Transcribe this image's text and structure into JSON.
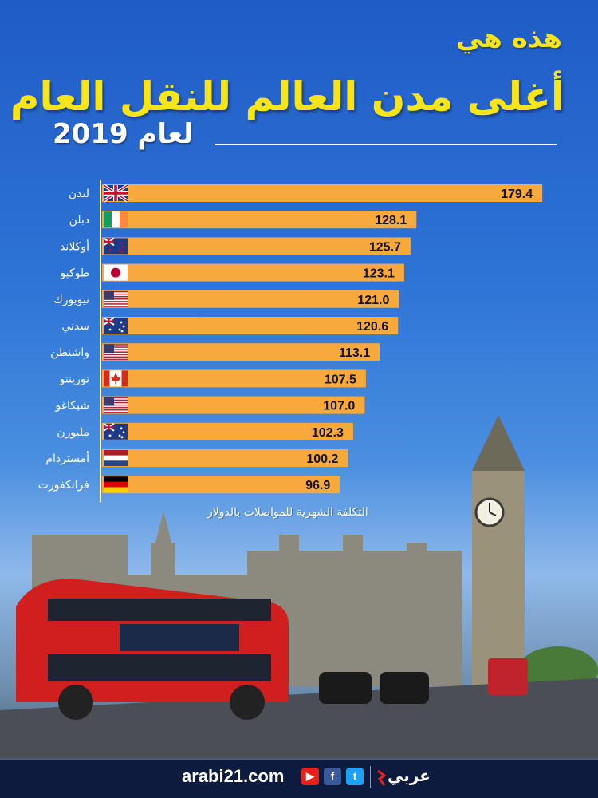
{
  "header": {
    "line1": "هذه هي",
    "line2": "أغلى مدن العالم للنقل العام",
    "line3": "لعام 2019"
  },
  "caption": "التكلفة الشهرية للمواصلات بالدولار",
  "chart_data": {
    "type": "bar",
    "orientation": "horizontal",
    "categories": [
      "لندن",
      "دبلن",
      "أوكلاند",
      "طوكيو",
      "نيويورك",
      "سدني",
      "واشنطن",
      "تورينتو",
      "شيكاغو",
      "ملبورن",
      "أمستردام",
      "فرانكفورت"
    ],
    "values": [
      179.4,
      128.1,
      125.7,
      123.1,
      121.0,
      120.6,
      113.1,
      107.5,
      107.0,
      102.3,
      100.2,
      96.9
    ],
    "value_labels": [
      "179.4",
      "128.1",
      "125.7",
      "123.1",
      "121.0",
      "120.6",
      "113.1",
      "107.5",
      "107.0",
      "102.3",
      "100.2",
      "96.9"
    ],
    "flags": [
      "uk-flag-icon",
      "ireland-flag-icon",
      "new-zealand-flag-icon",
      "japan-flag-icon",
      "usa-flag-icon",
      "australia-flag-icon",
      "usa-flag-icon",
      "canada-flag-icon",
      "usa-flag-icon",
      "australia-flag-icon",
      "netherlands-flag-icon",
      "germany-flag-icon"
    ],
    "xlim": [
      0,
      180
    ],
    "bar_color": "#f7a93b",
    "label_color": "#ffffff",
    "value_color": "#111111",
    "grid": false
  },
  "footer": {
    "site": "arabi21.com",
    "brand": "عربي"
  },
  "colors": {
    "title_yellow": "#f7e51a",
    "footer_bg": "#0d1b3e"
  }
}
